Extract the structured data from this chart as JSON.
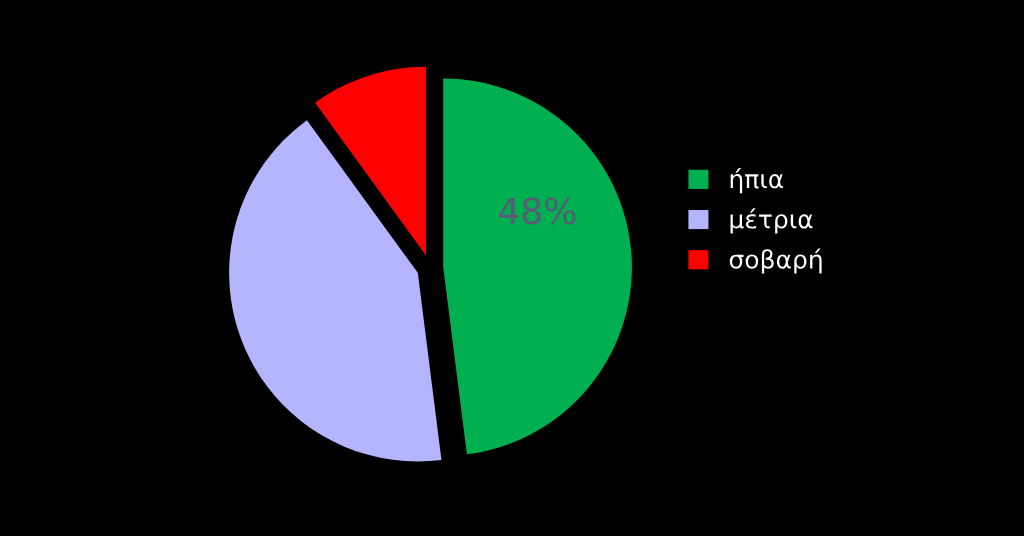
{
  "chart_data": {
    "type": "pie",
    "categories": [
      "ήπια",
      "μέτρια",
      "σοβαρή"
    ],
    "values": [
      48,
      42,
      10
    ],
    "colors": [
      "#00b050",
      "#b4b4ff",
      "#ff0000"
    ],
    "value_labels": [
      "48%",
      null,
      null
    ],
    "legend": "right"
  }
}
